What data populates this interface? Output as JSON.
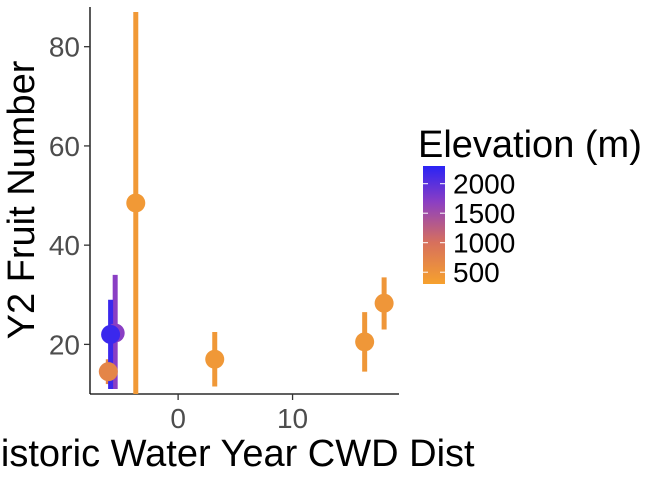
{
  "chart_data": {
    "type": "scatter",
    "title": "",
    "xlabel": "Historic Water Year CWD Dist",
    "ylabel": "Y2 Fruit Number",
    "xlim": [
      -7.7,
      19.3
    ],
    "ylim": [
      10,
      88
    ],
    "x_ticks": [
      0,
      10
    ],
    "y_ticks": [
      20,
      40,
      60,
      80
    ],
    "grid": false,
    "legend": {
      "title": "Elevation (m)",
      "placement": "right",
      "type": "colorbar",
      "breaks": [
        2000,
        1500,
        1000,
        500
      ],
      "range": [
        300,
        2300
      ],
      "low_color": "#f6a12e",
      "high_color": "#2a23f5"
    },
    "points": [
      {
        "x": -6.1,
        "y": 14.5,
        "ymin": 12.0,
        "ymax": 17.0,
        "elevation": 700
      },
      {
        "x": -5.9,
        "y": 22.0,
        "ymin": 11.0,
        "ymax": 29.0,
        "elevation": 2200
      },
      {
        "x": -5.5,
        "y": 22.3,
        "ymin": 11.0,
        "ymax": 34.0,
        "elevation": 1700
      },
      {
        "x": -3.7,
        "y": 48.5,
        "ymin": 10.0,
        "ymax": 87.0,
        "elevation": 420
      },
      {
        "x": 3.2,
        "y": 17.0,
        "ymin": 11.5,
        "ymax": 22.5,
        "elevation": 430
      },
      {
        "x": 16.3,
        "y": 20.5,
        "ymin": 14.5,
        "ymax": 26.5,
        "elevation": 450
      },
      {
        "x": 18.0,
        "y": 28.3,
        "ymin": 23.0,
        "ymax": 33.5,
        "elevation": 460
      }
    ]
  }
}
